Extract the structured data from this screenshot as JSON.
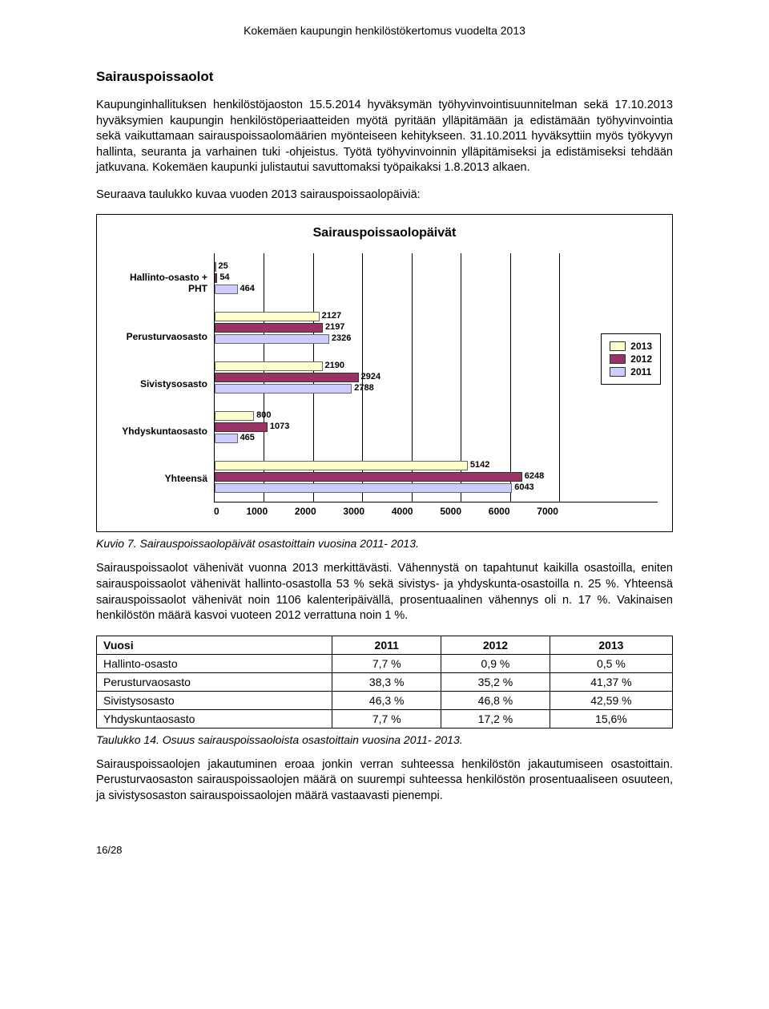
{
  "header": "Kokemäen kaupungin henkilöstökertomus vuodelta 2013",
  "section_title": "Sairauspoissaolot",
  "para1": "Kaupunginhallituksen henkilöstöjaoston 15.5.2014 hyväksymän työhyvinvointisuunnitelman sekä 17.10.2013 hyväksymien kaupungin henkilöstöperiaatteiden myötä pyritään ylläpitämään ja edistämään työhyvinvointia sekä vaikuttamaan sairauspoissaolomäärien myönteiseen kehitykseen. 31.10.2011 hyväksyttiin myös työkyvyn hallinta, seuranta ja varhainen tuki -ohjeistus. Työtä työhyvinvoinnin ylläpitämiseksi ja edistämiseksi tehdään jatkuvana. Kokemäen kaupunki julistautui savuttomaksi työpaikaksi 1.8.2013 alkaen.",
  "para2": "Seuraava taulukko kuvaa vuoden 2013 sairauspoissaolopäiviä:",
  "chart": {
    "title": "Sairauspoissaolopäivät",
    "x_max": 7000,
    "x_ticks": [
      0,
      1000,
      2000,
      3000,
      4000,
      5000,
      6000,
      7000
    ],
    "legend": [
      {
        "label": "2013",
        "class": "y2013",
        "color": "#ffffcc"
      },
      {
        "label": "2012",
        "class": "y2012",
        "color": "#993366"
      },
      {
        "label": "2011",
        "class": "y2011",
        "color": "#ccccff"
      }
    ],
    "categories": [
      {
        "name": "Hallinto-osasto + PHT",
        "bars": [
          {
            "y": "2013",
            "v": 25
          },
          {
            "y": "2012",
            "v": 54
          },
          {
            "y": "2011",
            "v": 464
          }
        ]
      },
      {
        "name": "Perusturvaosasto",
        "bars": [
          {
            "y": "2013",
            "v": 2127
          },
          {
            "y": "2012",
            "v": 2197
          },
          {
            "y": "2011",
            "v": 2326
          }
        ]
      },
      {
        "name": "Sivistysosasto",
        "bars": [
          {
            "y": "2013",
            "v": 2190
          },
          {
            "y": "2012",
            "v": 2924
          },
          {
            "y": "2011",
            "v": 2788
          }
        ]
      },
      {
        "name": "Yhdyskuntaosasto",
        "bars": [
          {
            "y": "2013",
            "v": 800
          },
          {
            "y": "2012",
            "v": 1073
          },
          {
            "y": "2011",
            "v": 465
          }
        ]
      },
      {
        "name": "Yhteensä",
        "bars": [
          {
            "y": "2013",
            "v": 5142
          },
          {
            "y": "2012",
            "v": 6248
          },
          {
            "y": "2011",
            "v": 6043
          }
        ]
      }
    ]
  },
  "caption1": "Kuvio 7. Sairauspoissaolopäivät osastoittain vuosina 2011- 2013.",
  "para3": "Sairauspoissaolot vähenivät vuonna 2013 merkittävästi. Vähennystä on tapahtunut kaikilla osastoilla, eniten sairauspoissaolot vähenivät hallinto-osastolla 53 % sekä sivistys- ja yhdyskunta-osastoilla n. 25 %. Yhteensä sairauspoissaolot vähenivät noin 1106 kalenteripäivällä, prosentuaalinen vähennys oli n. 17 %. Vakinaisen henkilöstön määrä kasvoi vuoteen 2012 verrattuna noin 1 %.",
  "table": {
    "header": [
      "Vuosi",
      "2011",
      "2012",
      "2013"
    ],
    "rows": [
      [
        "Hallinto-osasto",
        "7,7 %",
        "0,9 %",
        "0,5 %"
      ],
      [
        "Perusturvaosasto",
        "38,3 %",
        "35,2 %",
        "41,37 %"
      ],
      [
        "Sivistysosasto",
        "46,3 %",
        "46,8 %",
        "42,59 %"
      ],
      [
        "Yhdyskuntaosasto",
        "7,7 %",
        "17,2 %",
        "15,6%"
      ]
    ]
  },
  "caption2": "Taulukko 14. Osuus sairauspoissaoloista osastoittain vuosina 2011- 2013.",
  "para4": "Sairauspoissaolojen jakautuminen eroaa jonkin verran suhteessa henkilöstön jakautumiseen osastoittain. Perusturvaosaston sairauspoissaolojen määrä on suurempi suhteessa henkilöstön prosentuaaliseen osuuteen, ja sivistysosaston sairauspoissaolojen määrä vastaavasti pienempi.",
  "footer": "16/28"
}
